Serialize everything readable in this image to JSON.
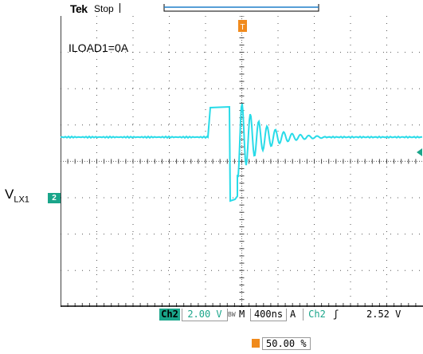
{
  "header": {
    "brand": "Tek",
    "status": "Stop"
  },
  "annotations": {
    "load_label": "ILOAD1=0A",
    "signal_label": "V",
    "signal_sub": "LX1"
  },
  "channel_marker": "2",
  "trigger_marker": "T",
  "statusbar": {
    "channel": "Ch2",
    "volts_per_div": "2.00 V",
    "bandwidth": "BW",
    "mode": "M",
    "time_per_div": "400ns",
    "trigger_mode": "A",
    "trigger_channel": "Ch2",
    "slope": "ʃ",
    "trigger_level": "2.52 V"
  },
  "trigger_position": "50.00 %",
  "colors": {
    "trace": "#29dbe8",
    "channel": "#1aa58a",
    "trigger": "#f08a1c",
    "grid": "#555555"
  }
}
